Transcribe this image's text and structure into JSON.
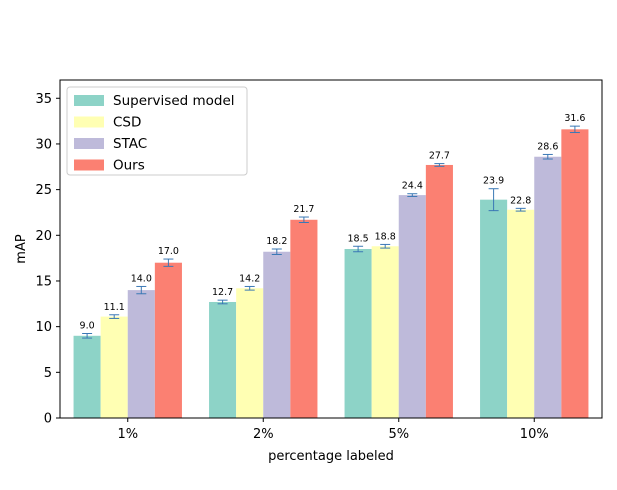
{
  "chart_data": {
    "type": "bar",
    "xlabel": "percentage labeled",
    "ylabel": "mAP",
    "ylim": [
      0,
      37
    ],
    "yticks": [
      0,
      5,
      10,
      15,
      20,
      25,
      30,
      35
    ],
    "grid": false,
    "legend_position": "top-left",
    "categories": [
      "1%",
      "2%",
      "5%",
      "10%"
    ],
    "series": [
      {
        "name": "Supervised model",
        "color": "#8dd3c7",
        "values": [
          9.0,
          12.7,
          18.5,
          23.9
        ],
        "errors": [
          0.25,
          0.2,
          0.3,
          1.2
        ],
        "labels": [
          "9.0",
          "12.7",
          "18.5",
          "23.9"
        ]
      },
      {
        "name": "CSD",
        "color": "#ffffb3",
        "values": [
          11.1,
          14.2,
          18.8,
          22.8
        ],
        "errors": [
          0.2,
          0.2,
          0.2,
          0.15
        ],
        "labels": [
          "11.1",
          "14.2",
          "18.8",
          "22.8"
        ]
      },
      {
        "name": "STAC",
        "color": "#bebada",
        "values": [
          14.0,
          18.2,
          24.4,
          28.6
        ],
        "errors": [
          0.4,
          0.3,
          0.15,
          0.25
        ],
        "labels": [
          "14.0",
          "18.2",
          "24.4",
          "28.6"
        ]
      },
      {
        "name": "Ours",
        "color": "#fb8072",
        "values": [
          17.0,
          21.7,
          27.7,
          31.6
        ],
        "errors": [
          0.4,
          0.3,
          0.15,
          0.35
        ],
        "labels": [
          "17.0",
          "21.7",
          "27.7",
          "31.6"
        ]
      }
    ],
    "errorbar_color": "#3a78b5"
  }
}
